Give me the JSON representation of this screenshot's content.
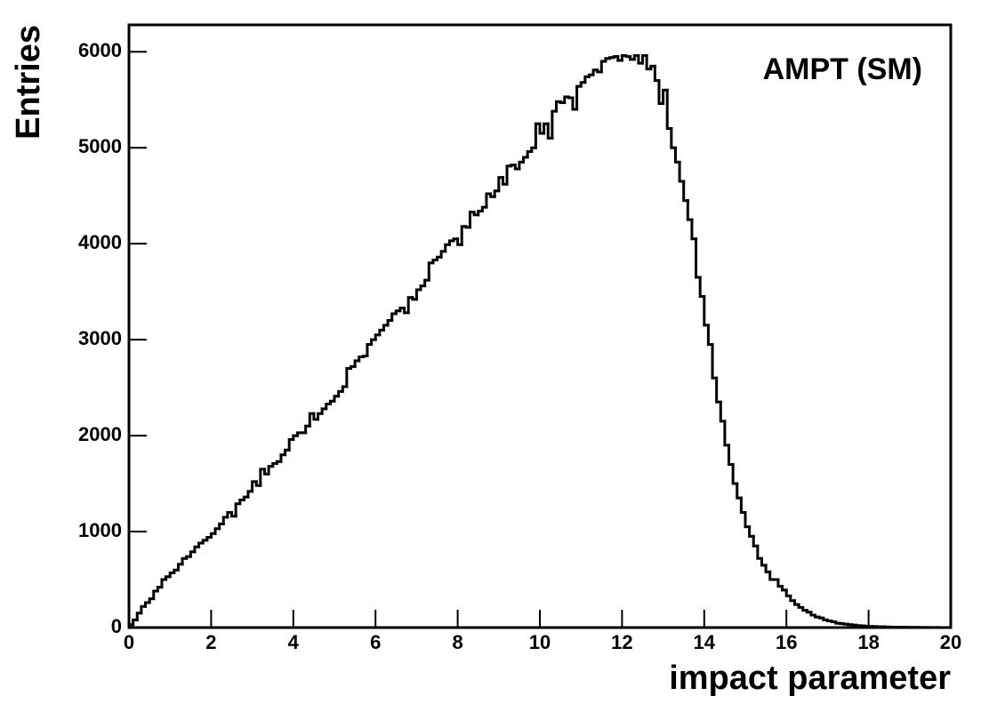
{
  "chart_data": {
    "type": "histogram",
    "title": "AMPT (SM)",
    "x_label": "impact parameter",
    "y_label": "Entries",
    "color": "#000000",
    "xlim": [
      0,
      20
    ],
    "ylim": [
      0,
      6280
    ],
    "xticks": [
      0,
      2,
      4,
      6,
      8,
      10,
      12,
      14,
      16,
      18,
      20
    ],
    "yticks": [
      0,
      1000,
      2000,
      3000,
      4000,
      5000,
      6000
    ],
    "bins": [
      0,
      0.1,
      0.2,
      0.3,
      0.4,
      0.5,
      0.6,
      0.7,
      0.8,
      0.9,
      1,
      1.1,
      1.2,
      1.3,
      1.4,
      1.5,
      1.6,
      1.7,
      1.8,
      1.9,
      2,
      2.1,
      2.2,
      2.3,
      2.4,
      2.5,
      2.6,
      2.7,
      2.8,
      2.9,
      3,
      3.1,
      3.2,
      3.3,
      3.4,
      3.5,
      3.6,
      3.7,
      3.8,
      3.9,
      4,
      4.1,
      4.2,
      4.3,
      4.4,
      4.5,
      4.6,
      4.7,
      4.8,
      4.9,
      5,
      5.1,
      5.2,
      5.3,
      5.4,
      5.5,
      5.6,
      5.7,
      5.8,
      5.9,
      6,
      6.1,
      6.2,
      6.3,
      6.4,
      6.5,
      6.6,
      6.7,
      6.8,
      6.9,
      7,
      7.1,
      7.2,
      7.3,
      7.4,
      7.5,
      7.6,
      7.7,
      7.8,
      7.9,
      8,
      8.1,
      8.2,
      8.3,
      8.4,
      8.5,
      8.6,
      8.7,
      8.8,
      8.9,
      9,
      9.1,
      9.2,
      9.3,
      9.4,
      9.5,
      9.6,
      9.7,
      9.8,
      9.9,
      10,
      10.1,
      10.2,
      10.3,
      10.4,
      10.5,
      10.6,
      10.7,
      10.8,
      10.9,
      11,
      11.1,
      11.2,
      11.3,
      11.4,
      11.5,
      11.6,
      11.7,
      11.8,
      11.9,
      12,
      12.1,
      12.2,
      12.3,
      12.4,
      12.5,
      12.6,
      12.7,
      12.8,
      12.9,
      13,
      13.1,
      13.2,
      13.3,
      13.4,
      13.5,
      13.6,
      13.7,
      13.8,
      13.9,
      14,
      14.1,
      14.2,
      14.3,
      14.4,
      14.5,
      14.6,
      14.7,
      14.8,
      14.9,
      15,
      15.1,
      15.2,
      15.3,
      15.4,
      15.5,
      15.6,
      15.7,
      15.8,
      15.9,
      16,
      16.1,
      16.2,
      16.3,
      16.4,
      16.5,
      16.6,
      16.7,
      16.8,
      16.9,
      17,
      17.1,
      17.2,
      17.3,
      17.4,
      17.5,
      17.6,
      17.7,
      17.8,
      17.9,
      18,
      18.1,
      18.2,
      18.3,
      18.4,
      18.5,
      18.6,
      18.7,
      18.8,
      18.9,
      19,
      19.1,
      19.2,
      19.3,
      19.4,
      19.5,
      19.6,
      19.7,
      19.8,
      19.9,
      20
    ],
    "values": [
      30,
      80,
      150,
      220,
      260,
      300,
      380,
      420,
      500,
      530,
      570,
      600,
      660,
      720,
      740,
      790,
      840,
      880,
      910,
      940,
      980,
      1030,
      1080,
      1150,
      1200,
      1160,
      1290,
      1330,
      1360,
      1420,
      1520,
      1480,
      1650,
      1600,
      1680,
      1710,
      1730,
      1800,
      1850,
      1960,
      2000,
      2030,
      2030,
      2100,
      2230,
      2170,
      2230,
      2280,
      2330,
      2360,
      2410,
      2460,
      2510,
      2700,
      2720,
      2780,
      2820,
      2830,
      2950,
      3000,
      3050,
      3100,
      3150,
      3200,
      3270,
      3300,
      3330,
      3280,
      3440,
      3420,
      3520,
      3560,
      3620,
      3800,
      3830,
      3860,
      3920,
      3990,
      4030,
      4050,
      3990,
      4180,
      4170,
      4330,
      4300,
      4340,
      4380,
      4520,
      4490,
      4550,
      4690,
      4620,
      4810,
      4820,
      4780,
      4850,
      4900,
      4960,
      5000,
      5250,
      5150,
      5250,
      5100,
      5380,
      5480,
      5470,
      5530,
      5520,
      5400,
      5640,
      5680,
      5740,
      5760,
      5810,
      5790,
      5900,
      5930,
      5940,
      5950,
      5910,
      5960,
      5950,
      5920,
      5960,
      5880,
      5960,
      5820,
      5850,
      5700,
      5460,
      5600,
      5200,
      5000,
      4850,
      4650,
      4450,
      4250,
      4050,
      3650,
      3450,
      3150,
      2950,
      2600,
      2350,
      2150,
      1900,
      1700,
      1500,
      1350,
      1200,
      1050,
      950,
      850,
      720,
      650,
      580,
      500,
      500,
      430,
      390,
      330,
      280,
      240,
      210,
      180,
      160,
      130,
      110,
      100,
      80,
      70,
      60,
      45,
      40,
      35,
      30,
      25,
      20,
      18,
      15,
      12,
      10,
      8,
      8,
      6,
      5,
      4,
      4,
      3,
      2,
      2,
      2,
      1,
      1,
      1,
      0,
      1,
      0,
      0,
      0
    ]
  }
}
